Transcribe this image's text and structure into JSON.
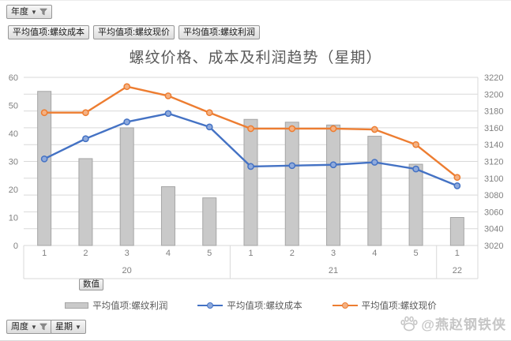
{
  "filters": {
    "year_field": {
      "label": "年度"
    },
    "value_fields": [
      "平均值项:螺纹成本",
      "平均值项:螺纹现价",
      "平均值项:螺纹利润"
    ],
    "values_axis_button": "数值",
    "week_field": {
      "label": "周度"
    },
    "week_type_field": {
      "label": "星期"
    }
  },
  "watermark": {
    "text": "@燕赵钢铁侠"
  },
  "chart_data": {
    "type": "bar",
    "subtype": "combo-bar-line-dual-axis",
    "title": "螺纹价格、成本及利润趋势（星期）",
    "x_groups": [
      {
        "year": "20",
        "weeks": [
          "1",
          "2",
          "3",
          "4",
          "5"
        ]
      },
      {
        "year": "21",
        "weeks": [
          "1",
          "2",
          "3",
          "4",
          "5"
        ]
      },
      {
        "year": "22",
        "weeks": [
          "1"
        ]
      }
    ],
    "left_axis": {
      "min": 0,
      "max": 60,
      "step": 10
    },
    "right_axis": {
      "min": 3020,
      "max": 3220,
      "step": 20
    },
    "gridline_color": "#d9d9d9",
    "axis_text_color": "#808080",
    "series": [
      {
        "name": "平均值项:螺纹利润",
        "type": "bar",
        "axis": "left",
        "color": "#c9c9c9",
        "border": "#a6a6a6",
        "values": [
          55,
          31,
          42,
          21,
          17,
          45,
          44,
          43,
          39,
          29,
          10
        ]
      },
      {
        "name": "平均值项:螺纹成本",
        "type": "line",
        "axis": "right",
        "color": "#4472c4",
        "marker_fill": "#8faadc",
        "values": [
          3123,
          3147,
          3167,
          3177,
          3161,
          3114,
          3115,
          3116,
          3119,
          3111,
          3091
        ]
      },
      {
        "name": "平均值项:螺纹现价",
        "type": "line",
        "axis": "right",
        "color": "#ed7d31",
        "marker_fill": "#f4b183",
        "values": [
          3178,
          3178,
          3209,
          3198,
          3178,
          3159,
          3159,
          3159,
          3158,
          3140,
          3101
        ]
      }
    ],
    "legend": [
      "平均值项:螺纹利润",
      "平均值项:螺纹成本",
      "平均值项:螺纹现价"
    ],
    "legend_position": "bottom"
  }
}
